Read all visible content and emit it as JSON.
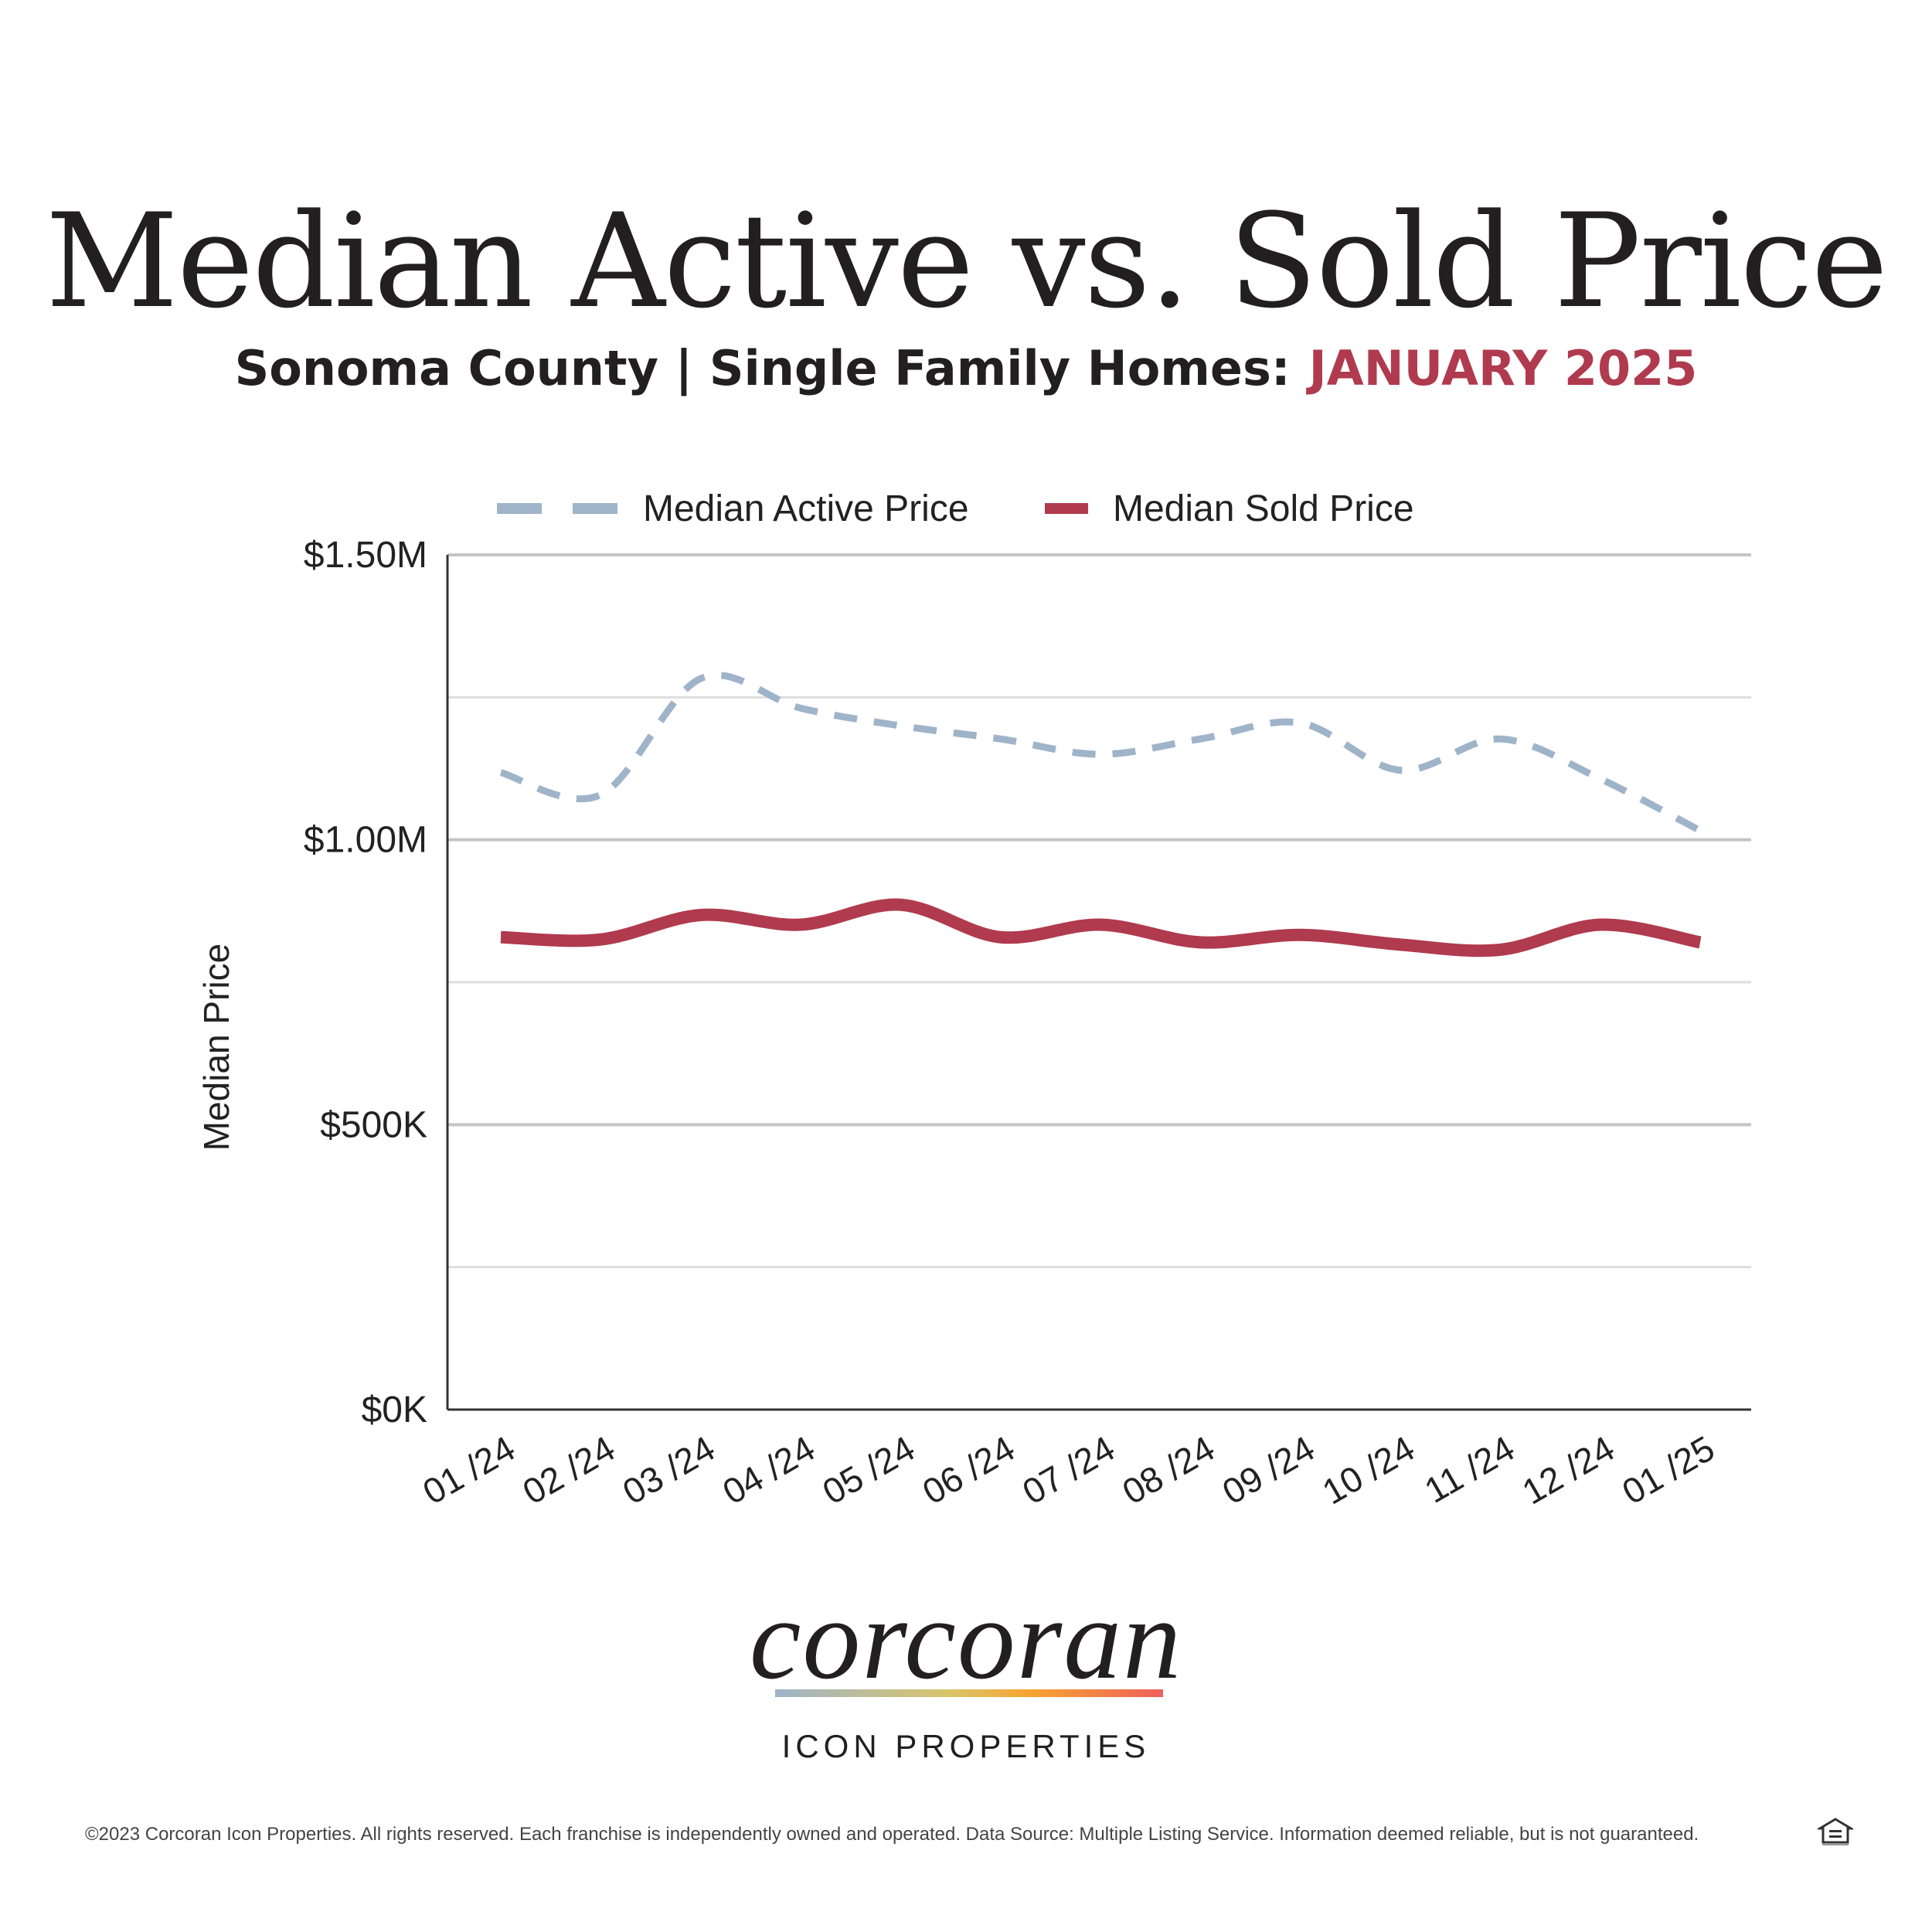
{
  "title": "Median Active vs. Sold Price",
  "subtitle": {
    "region": "Sonoma County | Single Family Homes:",
    "period": "JANUARY 2025"
  },
  "colors": {
    "accent": "#b03a4e",
    "active": "#9fb4c9",
    "sold": "#b03a4e"
  },
  "chart_data": {
    "type": "line",
    "title": "",
    "xlabel": "",
    "ylabel": "Median Price",
    "categories": [
      "01 /24",
      "02 /24",
      "03 /24",
      "04 /24",
      "05 /24",
      "06 /24",
      "07 /24",
      "08 /24",
      "09 /24",
      "10 /24",
      "11 /24",
      "12 /24",
      "01 /25"
    ],
    "ylim": [
      0,
      1500000
    ],
    "yticks": [
      0,
      500000,
      1000000,
      1500000
    ],
    "ytick_labels": [
      "$0K",
      "$500K",
      "$1.00M",
      "$1.50M"
    ],
    "grid": true,
    "legend": "top",
    "series": [
      {
        "name": "Median Active Price",
        "style": "dashed",
        "color": "#9fb4c9",
        "values": [
          1118000,
          1079000,
          1283000,
          1231000,
          1200000,
          1177000,
          1150000,
          1177000,
          1205000,
          1122000,
          1177000,
          1107000,
          1016000
        ]
      },
      {
        "name": "Median Sold Price",
        "style": "solid",
        "color": "#b03a4e",
        "values": [
          829000,
          825000,
          868000,
          851000,
          886000,
          829000,
          851000,
          820000,
          833000,
          816000,
          807000,
          851000,
          820000
        ]
      }
    ]
  },
  "brand": {
    "name": "corcoran",
    "sub": "ICON PROPERTIES"
  },
  "footer": "©2023 Corcoran Icon Properties. All rights reserved. Each franchise is independently owned and operated. Data Source: Multiple Listing Service. Information deemed reliable, but is not guaranteed.",
  "icons": {
    "footer": "equal-housing-opportunity-icon"
  }
}
